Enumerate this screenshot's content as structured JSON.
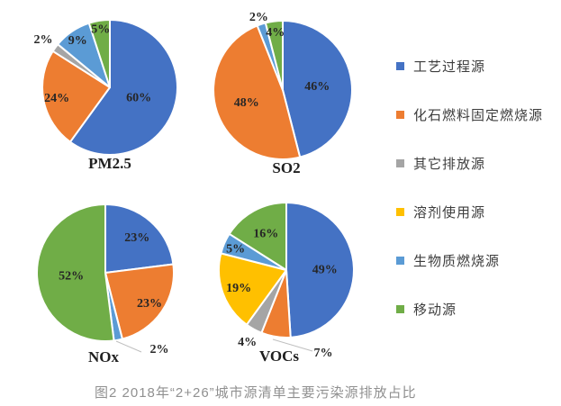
{
  "figure": {
    "caption": "图2 2018年“2+26”城市源清单主要污染源排放占比"
  },
  "colors": {
    "process": "#4472C4",
    "fossil": "#ED7D31",
    "other": "#A5A5A5",
    "solvent": "#FFC000",
    "biomass": "#5B9BD5",
    "mobile": "#70AD47"
  },
  "legend": {
    "position": "right",
    "items": [
      {
        "key": "process",
        "label": "工艺过程源"
      },
      {
        "key": "fossil",
        "label": "化石燃料固定燃烧源"
      },
      {
        "key": "other",
        "label": "其它排放源"
      },
      {
        "key": "solvent",
        "label": "溶剂使用源"
      },
      {
        "key": "biomass",
        "label": "生物质燃烧源"
      },
      {
        "key": "mobile",
        "label": "移动源"
      }
    ]
  },
  "chart_data": [
    {
      "type": "pie",
      "id": "pm25",
      "title": "PM2.5",
      "start_angle": "top",
      "direction": "clockwise",
      "label_suffix": "%",
      "slices": [
        {
          "category": "工艺过程源",
          "key": "process",
          "value": 60
        },
        {
          "category": "化石燃料固定燃烧源",
          "key": "fossil",
          "value": 24
        },
        {
          "category": "其它排放源",
          "key": "other",
          "value": 2
        },
        {
          "category": "生物质燃烧源",
          "key": "biomass",
          "value": 9
        },
        {
          "category": "移动源",
          "key": "mobile",
          "value": 5
        }
      ]
    },
    {
      "type": "pie",
      "id": "so2",
      "title": "SO2",
      "start_angle": "top",
      "direction": "clockwise",
      "label_suffix": "%",
      "slices": [
        {
          "category": "工艺过程源",
          "key": "process",
          "value": 46
        },
        {
          "category": "化石燃料固定燃烧源",
          "key": "fossil",
          "value": 48
        },
        {
          "category": "生物质燃烧源",
          "key": "biomass",
          "value": 2
        },
        {
          "category": "移动源",
          "key": "mobile",
          "value": 4
        }
      ]
    },
    {
      "type": "pie",
      "id": "nox",
      "title": "NOx",
      "start_angle": "top",
      "direction": "clockwise",
      "label_suffix": "%",
      "slices": [
        {
          "category": "工艺过程源",
          "key": "process",
          "value": 23
        },
        {
          "category": "化石燃料固定燃烧源",
          "key": "fossil",
          "value": 23
        },
        {
          "category": "生物质燃烧源",
          "key": "biomass",
          "value": 2
        },
        {
          "category": "移动源",
          "key": "mobile",
          "value": 52
        }
      ]
    },
    {
      "type": "pie",
      "id": "vocs",
      "title": "VOCs",
      "start_angle": "top",
      "direction": "clockwise",
      "label_suffix": "%",
      "slices": [
        {
          "category": "工艺过程源",
          "key": "process",
          "value": 49
        },
        {
          "category": "化石燃料固定燃烧源",
          "key": "fossil",
          "value": 7
        },
        {
          "category": "其它排放源",
          "key": "other",
          "value": 4
        },
        {
          "category": "溶剂使用源",
          "key": "solvent",
          "value": 19
        },
        {
          "category": "生物质燃烧源",
          "key": "biomass",
          "value": 5
        },
        {
          "category": "移动源",
          "key": "mobile",
          "value": 16
        }
      ]
    }
  ]
}
